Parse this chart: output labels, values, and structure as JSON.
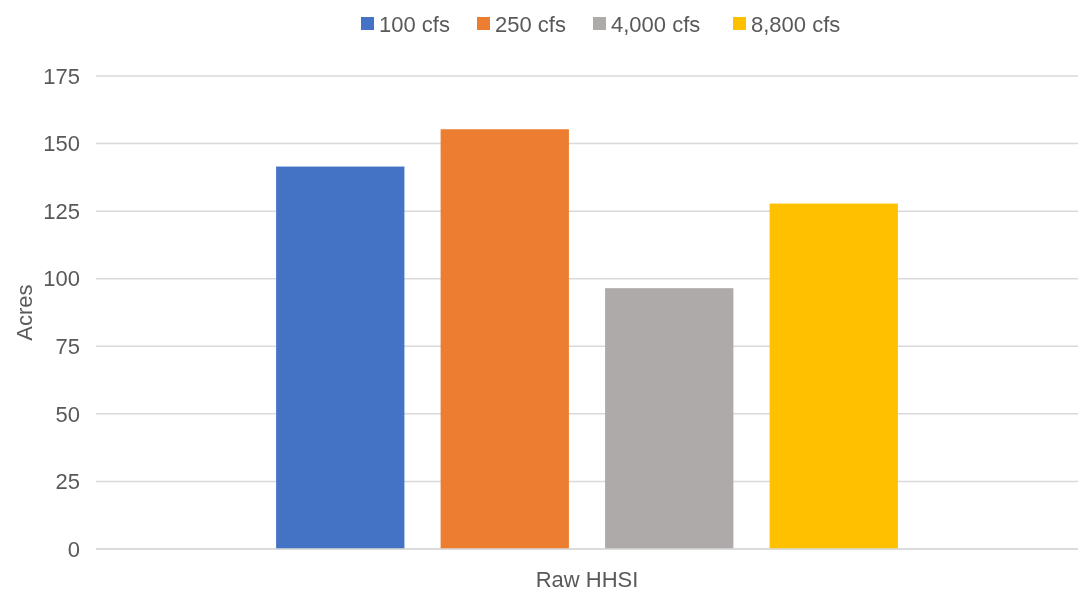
{
  "chart_data": {
    "type": "bar",
    "categories": [
      "Raw HHSI"
    ],
    "ylabel": "Acres",
    "series": [
      {
        "name": "100 cfs",
        "color": "#4472c4",
        "values": [
          141.5
        ]
      },
      {
        "name": "250 cfs",
        "color": "#ed7d31",
        "values": [
          155.3
        ]
      },
      {
        "name": "4,000 cfs",
        "color": "#aeaaaa",
        "values": [
          96.5
        ]
      },
      {
        "name": "8,800 cfs",
        "color": "#ffc000",
        "values": [
          127.8
        ]
      }
    ],
    "ylim": [
      0,
      175
    ],
    "yticks": [
      0,
      25,
      50,
      75,
      100,
      125,
      150,
      175
    ],
    "grid": "y",
    "legend": "top"
  }
}
